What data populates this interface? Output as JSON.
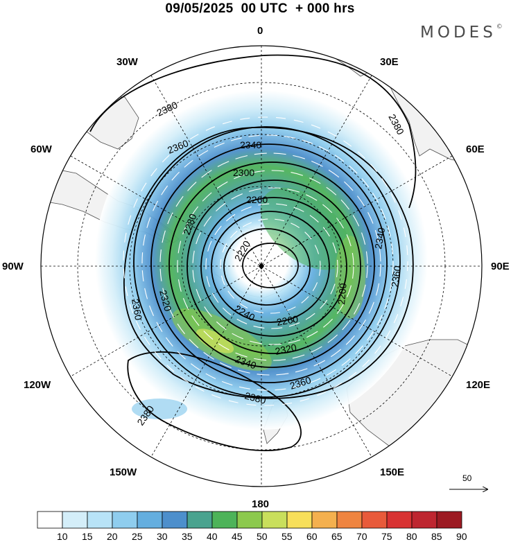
{
  "header": {
    "title": "09/05/2025  00 UTC  + 000 hrs",
    "brand": "MODES",
    "brand_mark": "©"
  },
  "map": {
    "projection": "south-polar-stereographic",
    "longitude_labels": [
      {
        "id": "0",
        "text": "0"
      },
      {
        "id": "30E",
        "text": "30E"
      },
      {
        "id": "60E",
        "text": "60E"
      },
      {
        "id": "90E",
        "text": "90E"
      },
      {
        "id": "120E",
        "text": "120E"
      },
      {
        "id": "150E",
        "text": "150E"
      },
      {
        "id": "180",
        "text": "180"
      },
      {
        "id": "150W",
        "text": "150W"
      },
      {
        "id": "120W",
        "text": "120W"
      },
      {
        "id": "90W",
        "text": "90W"
      },
      {
        "id": "60W",
        "text": "60W"
      },
      {
        "id": "30W",
        "text": "30W"
      }
    ],
    "contour_labels": [
      "2380",
      "2360",
      "2340",
      "2300",
      "2260",
      "2280",
      "2220",
      "2240",
      "2200",
      "2320",
      "2340",
      "2260",
      "2320",
      "2360",
      "2380",
      "2380",
      "2360",
      "2360",
      "2380",
      "2340"
    ],
    "wind_vector_reference": "50",
    "colors": {
      "land": "#f2f2f2",
      "ocean": "#ffffff",
      "contour": "#000000",
      "vector": "#ffffff"
    }
  },
  "colorbar": {
    "labels": [
      "10",
      "15",
      "20",
      "25",
      "30",
      "35",
      "40",
      "45",
      "50",
      "55",
      "60",
      "65",
      "70",
      "75",
      "80",
      "85",
      "90"
    ],
    "colors": [
      "#ffffff",
      "#d4eef9",
      "#b8e3f7",
      "#8fcdee",
      "#64aedf",
      "#4d8fcc",
      "#4aa38f",
      "#4db359",
      "#8cc94d",
      "#c9df5c",
      "#f7df5a",
      "#f4b04e",
      "#ef8440",
      "#e85a3a",
      "#d83232",
      "#be2630",
      "#9c1a22"
    ]
  }
}
